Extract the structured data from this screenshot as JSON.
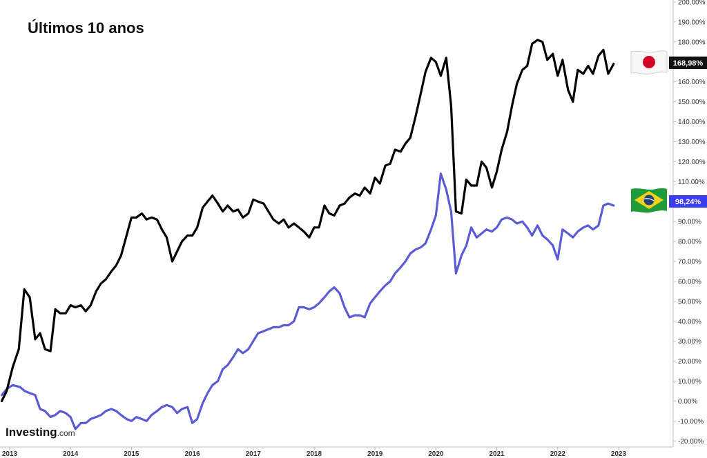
{
  "chart_data": {
    "type": "line",
    "title": "Últimos 10 anos",
    "ylim": [
      -23,
      201
    ],
    "y_ticks": [
      -20,
      -10,
      0,
      10,
      20,
      30,
      40,
      50,
      60,
      70,
      80,
      90,
      100,
      110,
      120,
      130,
      140,
      150,
      160,
      170,
      180,
      190,
      200
    ],
    "y_tick_labels": [
      "-20.00%",
      "-10.00%",
      "0.00%",
      "10.00%",
      "20.00%",
      "30.00%",
      "40.00%",
      "50.00%",
      "60.00%",
      "70.00%",
      "80.00%",
      "90.00%",
      "100.00%",
      "110.00%",
      "120.00%",
      "130.00%",
      "140.00%",
      "150.00%",
      "160.00%",
      "170.00%",
      "180.00%",
      "190.00%",
      "200.00%"
    ],
    "x_ticks": [
      "2013",
      "2014",
      "2015",
      "2016",
      "2017",
      "2018",
      "2019",
      "2020",
      "2021",
      "2022",
      "2023"
    ],
    "xlim": [
      2013.0,
      2023.5
    ],
    "grid": false,
    "series": [
      {
        "id": "japan",
        "flag": "japan-flag",
        "color": "#000000",
        "last_value_label": "168,98%",
        "points": [
          [
            2012.87,
            0
          ],
          [
            2012.95,
            5
          ],
          [
            2013.05,
            17
          ],
          [
            2013.15,
            26
          ],
          [
            2013.24,
            56
          ],
          [
            2013.33,
            52
          ],
          [
            2013.42,
            31
          ],
          [
            2013.5,
            34
          ],
          [
            2013.58,
            26
          ],
          [
            2013.67,
            25
          ],
          [
            2013.75,
            46
          ],
          [
            2013.83,
            44
          ],
          [
            2013.92,
            44
          ],
          [
            2014.0,
            48
          ],
          [
            2014.08,
            47
          ],
          [
            2014.17,
            48
          ],
          [
            2014.25,
            45
          ],
          [
            2014.33,
            48
          ],
          [
            2014.42,
            55
          ],
          [
            2014.5,
            59
          ],
          [
            2014.58,
            61
          ],
          [
            2014.67,
            65
          ],
          [
            2014.75,
            68
          ],
          [
            2014.83,
            73
          ],
          [
            2014.92,
            83
          ],
          [
            2015.0,
            92
          ],
          [
            2015.08,
            92
          ],
          [
            2015.17,
            94
          ],
          [
            2015.25,
            91
          ],
          [
            2015.33,
            92
          ],
          [
            2015.42,
            91
          ],
          [
            2015.5,
            86
          ],
          [
            2015.58,
            82
          ],
          [
            2015.67,
            70
          ],
          [
            2015.75,
            75
          ],
          [
            2015.83,
            80
          ],
          [
            2015.92,
            83
          ],
          [
            2016.0,
            83
          ],
          [
            2016.08,
            87
          ],
          [
            2016.17,
            97
          ],
          [
            2016.25,
            100
          ],
          [
            2016.33,
            103
          ],
          [
            2016.42,
            99
          ],
          [
            2016.5,
            95
          ],
          [
            2016.58,
            98
          ],
          [
            2016.67,
            95
          ],
          [
            2016.75,
            96
          ],
          [
            2016.83,
            92
          ],
          [
            2016.92,
            94
          ],
          [
            2017.0,
            101
          ],
          [
            2017.08,
            100
          ],
          [
            2017.17,
            99
          ],
          [
            2017.25,
            95
          ],
          [
            2017.33,
            91
          ],
          [
            2017.42,
            89
          ],
          [
            2017.5,
            91
          ],
          [
            2017.58,
            87
          ],
          [
            2017.67,
            89
          ],
          [
            2017.75,
            87
          ],
          [
            2017.83,
            85
          ],
          [
            2017.92,
            82
          ],
          [
            2018.0,
            87
          ],
          [
            2018.08,
            87
          ],
          [
            2018.17,
            98
          ],
          [
            2018.25,
            94
          ],
          [
            2018.33,
            93
          ],
          [
            2018.42,
            98
          ],
          [
            2018.5,
            99
          ],
          [
            2018.58,
            102
          ],
          [
            2018.67,
            104
          ],
          [
            2018.75,
            103
          ],
          [
            2018.83,
            107
          ],
          [
            2018.92,
            104
          ],
          [
            2019.0,
            112
          ],
          [
            2019.08,
            109
          ],
          [
            2019.17,
            118
          ],
          [
            2019.25,
            119
          ],
          [
            2019.33,
            126
          ],
          [
            2019.42,
            125
          ],
          [
            2019.5,
            129
          ],
          [
            2019.58,
            132
          ],
          [
            2019.67,
            143
          ],
          [
            2019.75,
            154
          ],
          [
            2019.83,
            165
          ],
          [
            2019.92,
            172
          ],
          [
            2020.0,
            170
          ],
          [
            2020.08,
            163
          ],
          [
            2020.17,
            172
          ],
          [
            2020.25,
            148
          ],
          [
            2020.33,
            95
          ],
          [
            2020.42,
            94
          ],
          [
            2020.5,
            111
          ],
          [
            2020.58,
            108
          ],
          [
            2020.67,
            108
          ],
          [
            2020.75,
            120
          ],
          [
            2020.83,
            117
          ],
          [
            2020.92,
            107
          ],
          [
            2021.0,
            115
          ],
          [
            2021.08,
            126
          ],
          [
            2021.17,
            135
          ],
          [
            2021.25,
            148
          ],
          [
            2021.33,
            159
          ],
          [
            2021.42,
            166
          ],
          [
            2021.5,
            168
          ],
          [
            2021.58,
            179
          ],
          [
            2021.67,
            181
          ],
          [
            2021.75,
            180
          ],
          [
            2021.83,
            171
          ],
          [
            2021.92,
            174
          ],
          [
            2022.0,
            163
          ],
          [
            2022.08,
            171
          ],
          [
            2022.17,
            156
          ],
          [
            2022.25,
            150
          ],
          [
            2022.33,
            166
          ],
          [
            2022.42,
            164
          ],
          [
            2022.5,
            168
          ],
          [
            2022.58,
            164
          ],
          [
            2022.67,
            173
          ],
          [
            2022.75,
            176
          ],
          [
            2022.83,
            164
          ],
          [
            2022.92,
            169
          ]
        ]
      },
      {
        "id": "brazil",
        "flag": "brazil-flag",
        "color": "#5b5bd6",
        "last_value_label": "98,24%",
        "points": [
          [
            2012.87,
            3
          ],
          [
            2012.95,
            6
          ],
          [
            2013.05,
            8
          ],
          [
            2013.17,
            7
          ],
          [
            2013.25,
            5
          ],
          [
            2013.33,
            4
          ],
          [
            2013.42,
            3
          ],
          [
            2013.5,
            -4
          ],
          [
            2013.58,
            -5
          ],
          [
            2013.67,
            -8
          ],
          [
            2013.75,
            -7
          ],
          [
            2013.83,
            -5
          ],
          [
            2013.92,
            -6
          ],
          [
            2014.0,
            -8
          ],
          [
            2014.08,
            -14
          ],
          [
            2014.17,
            -11
          ],
          [
            2014.25,
            -11
          ],
          [
            2014.33,
            -9
          ],
          [
            2014.42,
            -8
          ],
          [
            2014.5,
            -7
          ],
          [
            2014.58,
            -5
          ],
          [
            2014.67,
            -4
          ],
          [
            2014.75,
            -5
          ],
          [
            2014.83,
            -7
          ],
          [
            2014.92,
            -9
          ],
          [
            2015.0,
            -10
          ],
          [
            2015.08,
            -8
          ],
          [
            2015.17,
            -9
          ],
          [
            2015.25,
            -10
          ],
          [
            2015.33,
            -7
          ],
          [
            2015.42,
            -5
          ],
          [
            2015.5,
            -3
          ],
          [
            2015.58,
            -2
          ],
          [
            2015.67,
            -3
          ],
          [
            2015.75,
            -6
          ],
          [
            2015.83,
            -4
          ],
          [
            2015.92,
            -3
          ],
          [
            2016.0,
            -11
          ],
          [
            2016.08,
            -9
          ],
          [
            2016.17,
            -1
          ],
          [
            2016.25,
            4
          ],
          [
            2016.33,
            8
          ],
          [
            2016.42,
            10
          ],
          [
            2016.5,
            16
          ],
          [
            2016.58,
            18
          ],
          [
            2016.67,
            22
          ],
          [
            2016.75,
            26
          ],
          [
            2016.83,
            24
          ],
          [
            2016.92,
            26
          ],
          [
            2017.0,
            30
          ],
          [
            2017.08,
            34
          ],
          [
            2017.17,
            35
          ],
          [
            2017.25,
            36
          ],
          [
            2017.33,
            37
          ],
          [
            2017.42,
            37
          ],
          [
            2017.5,
            38
          ],
          [
            2017.58,
            38
          ],
          [
            2017.67,
            40
          ],
          [
            2017.75,
            47
          ],
          [
            2017.83,
            47
          ],
          [
            2017.92,
            46
          ],
          [
            2018.0,
            47
          ],
          [
            2018.08,
            49
          ],
          [
            2018.17,
            52
          ],
          [
            2018.25,
            55
          ],
          [
            2018.33,
            57
          ],
          [
            2018.42,
            54
          ],
          [
            2018.5,
            47
          ],
          [
            2018.58,
            42
          ],
          [
            2018.67,
            43
          ],
          [
            2018.75,
            43
          ],
          [
            2018.83,
            42
          ],
          [
            2018.92,
            49
          ],
          [
            2019.0,
            52
          ],
          [
            2019.08,
            55
          ],
          [
            2019.17,
            58
          ],
          [
            2019.25,
            60
          ],
          [
            2019.33,
            64
          ],
          [
            2019.42,
            67
          ],
          [
            2019.5,
            70
          ],
          [
            2019.58,
            74
          ],
          [
            2019.67,
            76
          ],
          [
            2019.75,
            77
          ],
          [
            2019.83,
            79
          ],
          [
            2019.92,
            86
          ],
          [
            2020.0,
            93
          ],
          [
            2020.08,
            114
          ],
          [
            2020.17,
            106
          ],
          [
            2020.25,
            95
          ],
          [
            2020.33,
            64
          ],
          [
            2020.42,
            73
          ],
          [
            2020.5,
            78
          ],
          [
            2020.58,
            87
          ],
          [
            2020.67,
            82
          ],
          [
            2020.75,
            84
          ],
          [
            2020.83,
            86
          ],
          [
            2020.92,
            85
          ],
          [
            2021.0,
            87
          ],
          [
            2021.08,
            91
          ],
          [
            2021.17,
            92
          ],
          [
            2021.25,
            91
          ],
          [
            2021.33,
            89
          ],
          [
            2021.42,
            90
          ],
          [
            2021.5,
            87
          ],
          [
            2021.58,
            83
          ],
          [
            2021.67,
            88
          ],
          [
            2021.75,
            83
          ],
          [
            2021.83,
            81
          ],
          [
            2021.92,
            78
          ],
          [
            2022.0,
            71
          ],
          [
            2022.08,
            86
          ],
          [
            2022.17,
            84
          ],
          [
            2022.25,
            82
          ],
          [
            2022.33,
            85
          ],
          [
            2022.42,
            87
          ],
          [
            2022.5,
            88
          ],
          [
            2022.58,
            86
          ],
          [
            2022.67,
            88
          ],
          [
            2022.75,
            98
          ],
          [
            2022.83,
            99
          ],
          [
            2022.92,
            98
          ]
        ]
      }
    ]
  },
  "branding": {
    "logo_main": "Investing",
    "logo_sub": ".com"
  },
  "colors": {
    "japan_badge": "#111111",
    "brazil_badge": "#3b3bf0",
    "axis": "#bbbbbb"
  }
}
